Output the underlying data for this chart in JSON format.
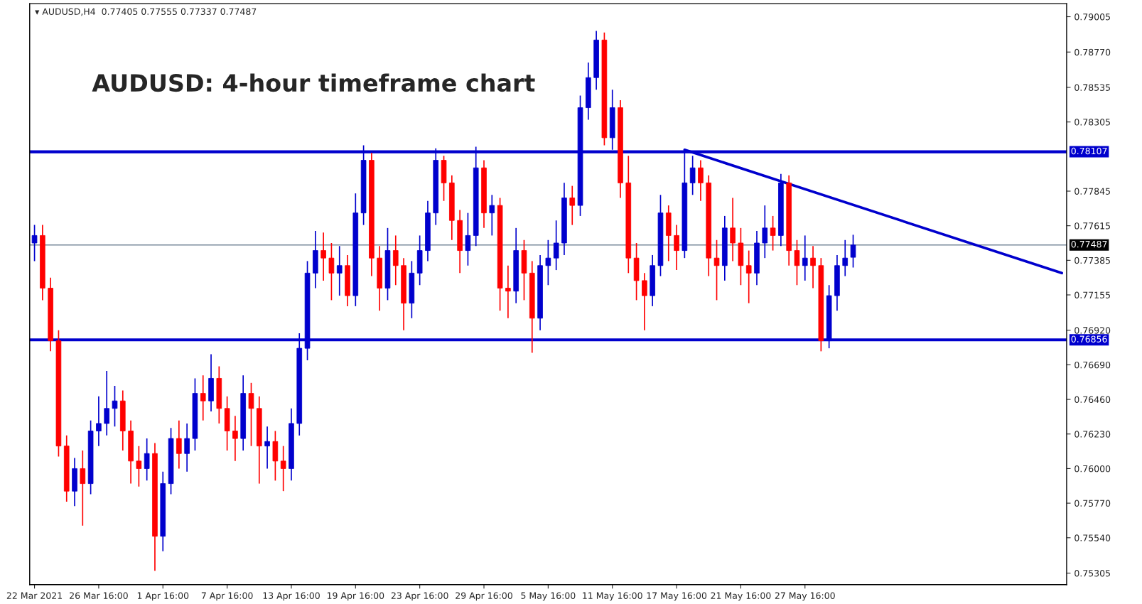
{
  "chart_data": {
    "type": "candlestick",
    "title": "AUDUSD: 4-hour timeframe chart",
    "annotations": [
      "▾ AUDUSD,H4  0.77405 0.77555 0.77337 0.77487"
    ],
    "categories": [
      "22 Mar 2021",
      null,
      null,
      null,
      null,
      null,
      null,
      null,
      "26 Mar 16:00",
      null,
      null,
      null,
      null,
      null,
      null,
      null,
      "1 Apr 16:00",
      null,
      null,
      null,
      null,
      null,
      null,
      null,
      "7 Apr 16:00",
      null,
      null,
      null,
      null,
      null,
      null,
      null,
      "13 Apr 16:00",
      null,
      null,
      null,
      null,
      null,
      null,
      null,
      "19 Apr 16:00",
      null,
      null,
      null,
      null,
      null,
      null,
      null,
      "23 Apr 16:00",
      null,
      null,
      null,
      null,
      null,
      null,
      null,
      "29 Apr 16:00",
      null,
      null,
      null,
      null,
      null,
      null,
      null,
      "5 May 16:00",
      null,
      null,
      null,
      null,
      null,
      null,
      null,
      "11 May 16:00",
      null,
      null,
      null,
      null,
      null,
      null,
      null,
      "17 May 16:00",
      null,
      null,
      null,
      null,
      null,
      null,
      null,
      "21 May 16:00",
      null,
      null,
      null,
      null,
      null,
      null,
      null,
      "27 May 16:00",
      null,
      null,
      null,
      null,
      null,
      null,
      null,
      null,
      null,
      null,
      null,
      null,
      null,
      null,
      null,
      null,
      null,
      null,
      null,
      null,
      null,
      null,
      null,
      null,
      null,
      null,
      null,
      null,
      null,
      null,
      null,
      null
    ],
    "ohlc": [
      [
        0.775,
        0.7762,
        0.7738,
        0.7755
      ],
      [
        0.7755,
        0.7762,
        0.7712,
        0.772
      ],
      [
        0.772,
        0.7727,
        0.7678,
        0.7685
      ],
      [
        0.7685,
        0.7692,
        0.7608,
        0.7615
      ],
      [
        0.7615,
        0.7622,
        0.7578,
        0.7585
      ],
      [
        0.7585,
        0.7607,
        0.7575,
        0.76
      ],
      [
        0.76,
        0.7612,
        0.7562,
        0.759
      ],
      [
        0.759,
        0.7632,
        0.7583,
        0.7625
      ],
      [
        0.7625,
        0.7648,
        0.7615,
        0.763
      ],
      [
        0.763,
        0.7665,
        0.7622,
        0.764
      ],
      [
        0.764,
        0.7655,
        0.7628,
        0.7645
      ],
      [
        0.7645,
        0.7652,
        0.7612,
        0.7625
      ],
      [
        0.7625,
        0.7632,
        0.759,
        0.7605
      ],
      [
        0.7605,
        0.7615,
        0.7588,
        0.76
      ],
      [
        0.76,
        0.762,
        0.7592,
        0.761
      ],
      [
        0.761,
        0.7617,
        0.7532,
        0.7555
      ],
      [
        0.7555,
        0.7598,
        0.7545,
        0.759
      ],
      [
        0.759,
        0.7627,
        0.7583,
        0.762
      ],
      [
        0.762,
        0.7632,
        0.76,
        0.761
      ],
      [
        0.761,
        0.763,
        0.7598,
        0.762
      ],
      [
        0.762,
        0.766,
        0.7612,
        0.765
      ],
      [
        0.765,
        0.7662,
        0.7632,
        0.7645
      ],
      [
        0.7645,
        0.7676,
        0.7638,
        0.766
      ],
      [
        0.766,
        0.7668,
        0.763,
        0.764
      ],
      [
        0.764,
        0.7648,
        0.7612,
        0.7625
      ],
      [
        0.7625,
        0.7635,
        0.7605,
        0.762
      ],
      [
        0.762,
        0.7662,
        0.7612,
        0.765
      ],
      [
        0.765,
        0.7657,
        0.7615,
        0.764
      ],
      [
        0.764,
        0.7648,
        0.759,
        0.7615
      ],
      [
        0.7615,
        0.7628,
        0.76,
        0.7618
      ],
      [
        0.7618,
        0.7625,
        0.7592,
        0.7605
      ],
      [
        0.7605,
        0.7615,
        0.7585,
        0.76
      ],
      [
        0.76,
        0.764,
        0.7592,
        0.763
      ],
      [
        0.763,
        0.769,
        0.7622,
        0.768
      ],
      [
        0.768,
        0.7738,
        0.7672,
        0.773
      ],
      [
        0.773,
        0.7758,
        0.772,
        0.7745
      ],
      [
        0.7745,
        0.7757,
        0.7725,
        0.774
      ],
      [
        0.774,
        0.775,
        0.7712,
        0.773
      ],
      [
        0.773,
        0.7748,
        0.7715,
        0.7735
      ],
      [
        0.7735,
        0.7742,
        0.7708,
        0.7715
      ],
      [
        0.7715,
        0.7783,
        0.7708,
        0.777
      ],
      [
        0.777,
        0.7815,
        0.7762,
        0.7805
      ],
      [
        0.7805,
        0.781,
        0.7728,
        0.774
      ],
      [
        0.774,
        0.7748,
        0.7705,
        0.772
      ],
      [
        0.772,
        0.776,
        0.7712,
        0.7745
      ],
      [
        0.7745,
        0.7755,
        0.7722,
        0.7735
      ],
      [
        0.7735,
        0.774,
        0.7692,
        0.771
      ],
      [
        0.771,
        0.7738,
        0.77,
        0.773
      ],
      [
        0.773,
        0.7755,
        0.7722,
        0.7745
      ],
      [
        0.7745,
        0.7778,
        0.7738,
        0.777
      ],
      [
        0.777,
        0.7813,
        0.7762,
        0.7805
      ],
      [
        0.7805,
        0.7808,
        0.7778,
        0.779
      ],
      [
        0.779,
        0.7795,
        0.7752,
        0.7765
      ],
      [
        0.7765,
        0.7772,
        0.773,
        0.7745
      ],
      [
        0.7745,
        0.777,
        0.7735,
        0.7755
      ],
      [
        0.7755,
        0.7814,
        0.7748,
        0.78
      ],
      [
        0.78,
        0.7805,
        0.776,
        0.777
      ],
      [
        0.777,
        0.7782,
        0.7755,
        0.7775
      ],
      [
        0.7775,
        0.778,
        0.7705,
        0.772
      ],
      [
        0.772,
        0.7735,
        0.77,
        0.7718
      ],
      [
        0.7718,
        0.776,
        0.771,
        0.7745
      ],
      [
        0.7745,
        0.7752,
        0.7712,
        0.773
      ],
      [
        0.773,
        0.7738,
        0.7677,
        0.77
      ],
      [
        0.77,
        0.7742,
        0.7692,
        0.7735
      ],
      [
        0.7735,
        0.7752,
        0.7722,
        0.774
      ],
      [
        0.774,
        0.7765,
        0.7732,
        0.775
      ],
      [
        0.775,
        0.779,
        0.7742,
        0.778
      ],
      [
        0.778,
        0.7788,
        0.7762,
        0.7775
      ],
      [
        0.7775,
        0.7848,
        0.7768,
        0.784
      ],
      [
        0.784,
        0.787,
        0.7832,
        0.786
      ],
      [
        0.786,
        0.7891,
        0.7852,
        0.7885
      ],
      [
        0.7885,
        0.789,
        0.7815,
        0.782
      ],
      [
        0.782,
        0.7852,
        0.7812,
        0.784
      ],
      [
        0.784,
        0.7845,
        0.778,
        0.779
      ],
      [
        0.779,
        0.7808,
        0.773,
        0.774
      ],
      [
        0.774,
        0.775,
        0.7712,
        0.7725
      ],
      [
        0.7725,
        0.773,
        0.7692,
        0.7715
      ],
      [
        0.7715,
        0.7742,
        0.7708,
        0.7735
      ],
      [
        0.7735,
        0.7782,
        0.7728,
        0.777
      ],
      [
        0.777,
        0.7775,
        0.7738,
        0.7755
      ],
      [
        0.7755,
        0.7762,
        0.7732,
        0.7745
      ],
      [
        0.7745,
        0.7812,
        0.774,
        0.779
      ],
      [
        0.779,
        0.7808,
        0.7782,
        0.78
      ],
      [
        0.78,
        0.7805,
        0.7778,
        0.779
      ],
      [
        0.779,
        0.7795,
        0.7728,
        0.774
      ],
      [
        0.774,
        0.7752,
        0.7712,
        0.7735
      ],
      [
        0.7735,
        0.7768,
        0.7725,
        0.776
      ],
      [
        0.776,
        0.778,
        0.7738,
        0.775
      ],
      [
        0.775,
        0.776,
        0.7722,
        0.7735
      ],
      [
        0.7735,
        0.7745,
        0.771,
        0.773
      ],
      [
        0.773,
        0.7758,
        0.7722,
        0.775
      ],
      [
        0.775,
        0.7775,
        0.774,
        0.776
      ],
      [
        0.776,
        0.7768,
        0.7745,
        0.7755
      ],
      [
        0.7755,
        0.7796,
        0.7748,
        0.779
      ],
      [
        0.779,
        0.7795,
        0.7735,
        0.7745
      ],
      [
        0.7745,
        0.7752,
        0.7722,
        0.7735
      ],
      [
        0.7735,
        0.7755,
        0.7725,
        0.774
      ],
      [
        0.774,
        0.7748,
        0.772,
        0.7735
      ],
      [
        0.7735,
        0.774,
        0.7678,
        0.7685
      ],
      [
        0.7685,
        0.7722,
        0.768,
        0.7715
      ],
      [
        0.7715,
        0.7742,
        0.7705,
        0.7735
      ],
      [
        0.7735,
        0.7752,
        0.7728,
        0.774
      ],
      [
        0.77405,
        0.77555,
        0.77337,
        0.77487
      ],
      null,
      null,
      null,
      null,
      null,
      null,
      null,
      null,
      null,
      null,
      null,
      null,
      null,
      null,
      null,
      null,
      null,
      null,
      null,
      null,
      null,
      null,
      null,
      null,
      null,
      null
    ],
    "colors": [
      "#0000cd",
      "#ff0000",
      "#ff0000",
      "#ff0000",
      "#ff0000",
      "#0000cd",
      "#ff0000",
      "#0000cd",
      "#0000cd",
      "#0000cd",
      "#0000cd",
      "#ff0000",
      "#ff0000",
      "#ff0000",
      "#0000cd",
      "#ff0000",
      "#0000cd",
      "#0000cd",
      "#ff0000",
      "#0000cd",
      "#0000cd",
      "#ff0000",
      "#0000cd",
      "#ff0000",
      "#ff0000",
      "#ff0000",
      "#0000cd",
      "#ff0000",
      "#ff0000",
      "#0000cd",
      "#ff0000",
      "#ff0000",
      "#0000cd",
      "#0000cd",
      "#0000cd",
      "#0000cd",
      "#ff0000",
      "#ff0000",
      "#0000cd",
      "#ff0000",
      "#0000cd",
      "#0000cd",
      "#ff0000",
      "#ff0000",
      "#0000cd",
      "#ff0000",
      "#ff0000",
      "#0000cd",
      "#0000cd",
      "#0000cd",
      "#0000cd",
      "#ff0000",
      "#ff0000",
      "#ff0000",
      "#0000cd",
      "#0000cd",
      "#ff0000",
      "#0000cd",
      "#ff0000",
      "#ff0000",
      "#0000cd",
      "#ff0000",
      "#ff0000",
      "#0000cd",
      "#0000cd",
      "#0000cd",
      "#0000cd",
      "#ff0000",
      "#0000cd",
      "#0000cd",
      "#0000cd",
      "#ff0000",
      "#0000cd",
      "#ff0000",
      "#ff0000",
      "#ff0000",
      "#ff0000",
      "#0000cd",
      "#0000cd",
      "#ff0000",
      "#ff0000",
      "#0000cd",
      "#0000cd",
      "#ff0000",
      "#ff0000",
      "#ff0000",
      "#0000cd",
      "#ff0000",
      "#ff0000",
      "#ff0000",
      "#0000cd",
      "#0000cd",
      "#ff0000",
      "#0000cd",
      "#ff0000",
      "#ff0000",
      "#0000cd",
      "#ff0000",
      "#ff0000",
      "#0000cd",
      "#0000cd",
      "#0000cd",
      "#0000cd",
      null,
      null,
      null,
      null,
      null,
      null,
      null,
      null,
      null,
      null,
      null,
      null,
      null,
      null,
      null,
      null,
      null,
      null,
      null,
      null,
      null,
      null,
      null,
      null,
      null,
      null
    ],
    "series": [
      {
        "type": "line",
        "color": "#0000cd",
        "values": [
          null,
          null,
          null,
          null,
          null,
          null,
          null,
          null,
          null,
          null,
          null,
          null,
          null,
          null,
          null,
          null,
          null,
          null,
          null,
          null,
          null,
          null,
          null,
          null,
          null,
          null,
          null,
          null,
          null,
          null,
          null,
          null,
          null,
          null,
          null,
          null,
          null,
          null,
          null,
          null,
          null,
          null,
          null,
          null,
          null,
          null,
          null,
          null,
          null,
          null,
          null,
          null,
          null,
          null,
          null,
          null,
          null,
          null,
          null,
          null,
          null,
          null,
          null,
          null,
          null,
          null,
          null,
          null,
          null,
          null,
          null,
          null,
          null,
          null,
          null,
          null,
          null,
          null,
          null,
          null,
          null,
          0.7812,
          null,
          null,
          null,
          null,
          null,
          null,
          null,
          null,
          null,
          null,
          null,
          null,
          null,
          null,
          null,
          null,
          null,
          null,
          null,
          null,
          null,
          null,
          null,
          null,
          null,
          null,
          null,
          null,
          null,
          null,
          null,
          null,
          null,
          null,
          null,
          null,
          null,
          null,
          null,
          null,
          null,
          null,
          null,
          null,
          null,
          null,
          0.773
        ]
      }
    ],
    "ref_lines": [
      {
        "axis": "y",
        "value": 0.78107,
        "label": "0.78107",
        "color": "#0000cd"
      },
      {
        "axis": "y",
        "value": 0.76856,
        "label": "0.76856",
        "color": "#0000cd"
      },
      {
        "axis": "y",
        "value": 0.77487,
        "label": "0.77487",
        "color": "#778899"
      }
    ],
    "ylim": [
      0.75228,
      0.79092
    ],
    "yticks": [
      {
        "value": 0.79005,
        "label": "0.79005"
      },
      {
        "value": 0.7877,
        "label": "0.78770"
      },
      {
        "value": 0.78535,
        "label": "0.78535"
      },
      {
        "value": 0.78305,
        "label": "0.78305"
      },
      {
        "value": 0.77845,
        "label": "0.77845"
      },
      {
        "value": 0.77615,
        "label": "0.77615"
      },
      {
        "value": 0.77385,
        "label": "0.77385"
      },
      {
        "value": 0.77155,
        "label": "0.77155"
      },
      {
        "value": 0.7692,
        "label": "0.76920"
      },
      {
        "value": 0.7669,
        "label": "0.76690"
      },
      {
        "value": 0.7646,
        "label": "0.76460"
      },
      {
        "value": 0.7623,
        "label": "0.76230"
      },
      {
        "value": 0.76,
        "label": "0.76000"
      },
      {
        "value": 0.7577,
        "label": "0.75770"
      },
      {
        "value": 0.7554,
        "label": "0.75540"
      },
      {
        "value": 0.75305,
        "label": "0.75305"
      }
    ]
  }
}
